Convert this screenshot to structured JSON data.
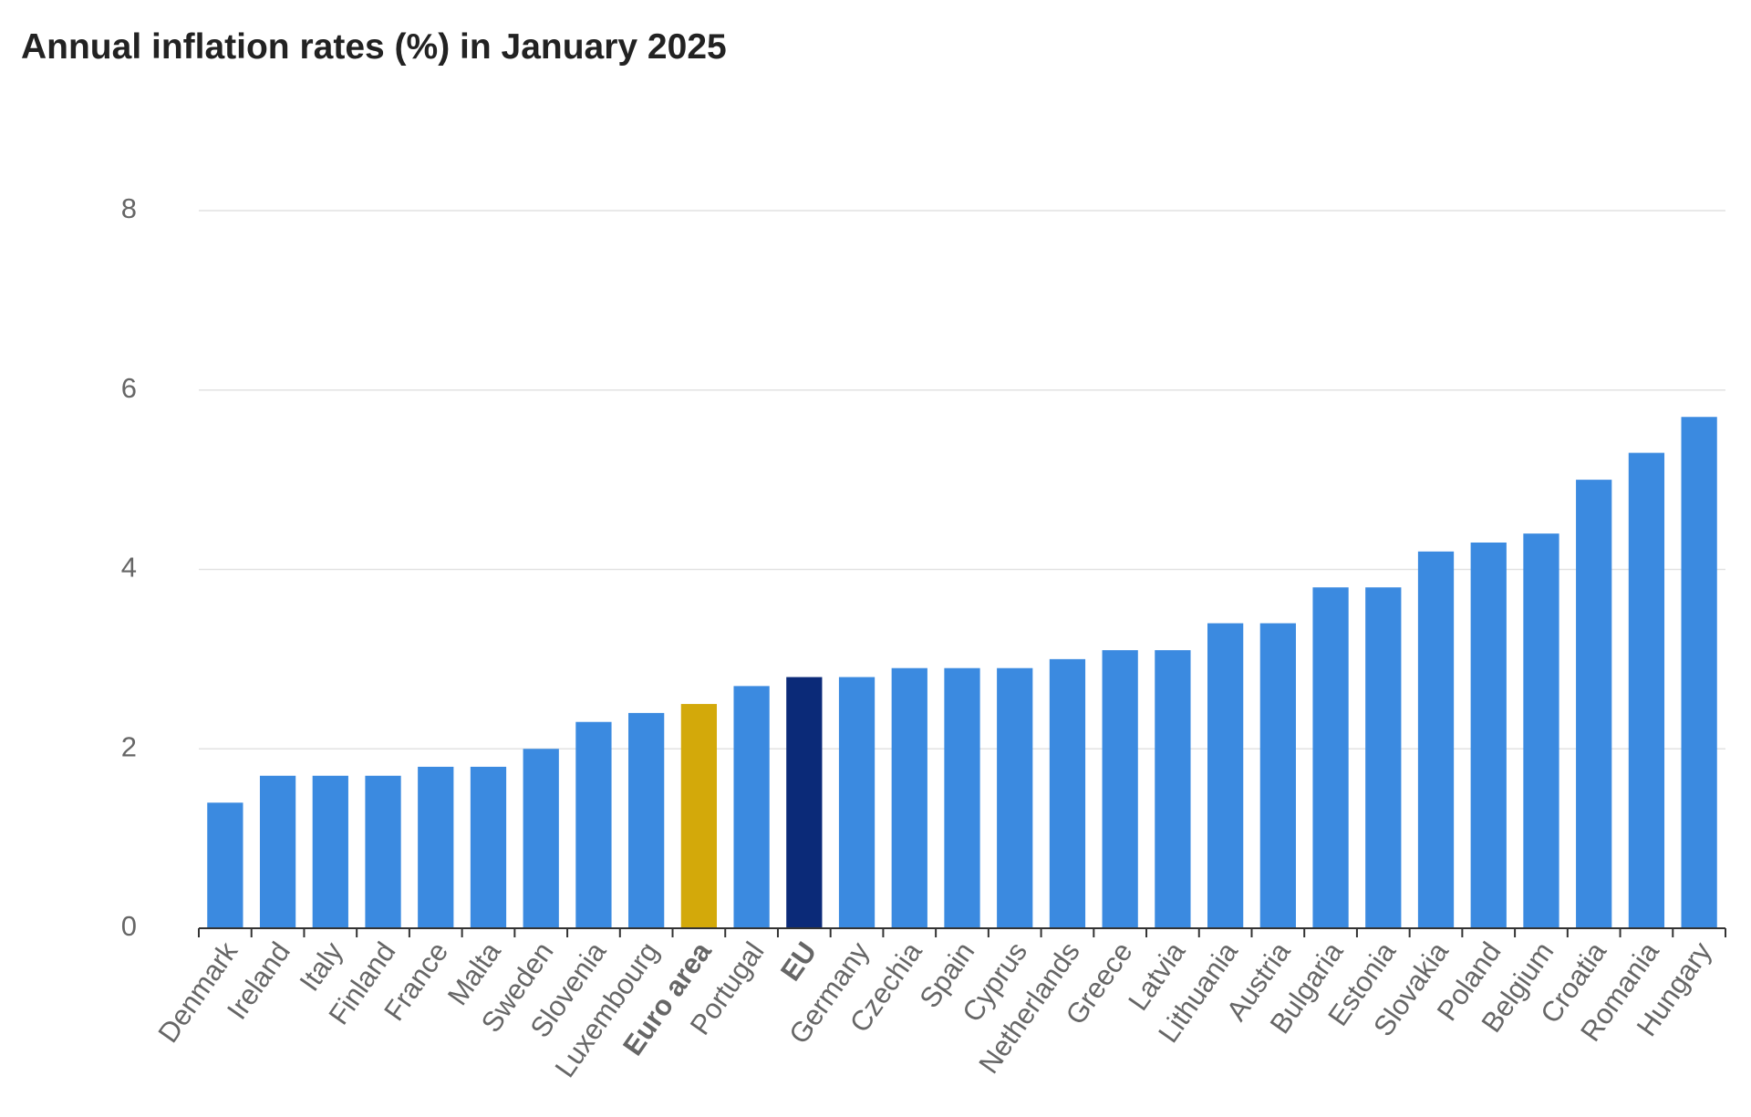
{
  "chart_data": {
    "type": "bar",
    "title": "Annual inflation rates (%) in January 2025",
    "xlabel": "",
    "ylabel": "",
    "ylim": [
      0,
      8
    ],
    "yticks": [
      0,
      2,
      4,
      6,
      8
    ],
    "grid": true,
    "legend": "none",
    "categories": [
      "Denmark",
      "Ireland",
      "Italy",
      "Finland",
      "France",
      "Malta",
      "Sweden",
      "Slovenia",
      "Luxembourg",
      "Euro area",
      "Portugal",
      "EU",
      "Germany",
      "Czechia",
      "Spain",
      "Cyprus",
      "Netherlands",
      "Greece",
      "Latvia",
      "Lithuania",
      "Austria",
      "Bulgaria",
      "Estonia",
      "Slovakia",
      "Poland",
      "Belgium",
      "Croatia",
      "Romania",
      "Hungary"
    ],
    "values": [
      1.4,
      1.7,
      1.7,
      1.7,
      1.8,
      1.8,
      2.0,
      2.3,
      2.4,
      2.5,
      2.7,
      2.8,
      2.8,
      2.9,
      2.9,
      2.9,
      3.0,
      3.1,
      3.1,
      3.4,
      3.4,
      3.8,
      3.8,
      4.2,
      4.3,
      4.4,
      5.0,
      5.3,
      5.7
    ],
    "highlighted": [
      "Euro area",
      "EU"
    ],
    "colors": {
      "default": "#3b8ae0",
      "Euro area": "#d3a90a",
      "EU": "#0b2a78",
      "grid": "#e2e2e2",
      "axis": "#333333",
      "tick_label": "#666666"
    }
  }
}
